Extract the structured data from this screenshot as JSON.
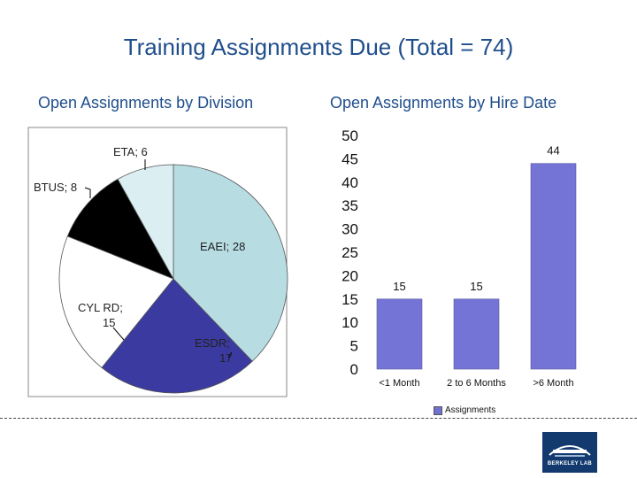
{
  "title": "Training Assignments Due (Total = 74)",
  "chart_data": [
    {
      "type": "pie",
      "title": "Open Assignments by Division",
      "slices": [
        {
          "label": "EAEI; 28",
          "name": "EAEI",
          "value": 28,
          "color": "#b7dde3"
        },
        {
          "label": "ESDR; 17",
          "name": "ESDR",
          "value": 17,
          "color": "#3a3aa0"
        },
        {
          "label": "CYL RD; 15",
          "name": "CYL RD",
          "value": 15,
          "color": "#ffffff"
        },
        {
          "label": "BTUS; 8",
          "name": "BTUS",
          "value": 8,
          "color": "#000000"
        },
        {
          "label": "ETA; 6",
          "name": "ETA",
          "value": 6,
          "color": "#dbeff3"
        }
      ]
    },
    {
      "type": "bar",
      "title": "Open Assignments by Hire Date",
      "categories": [
        "<1 Month",
        "2 to 6 Months",
        ">6 Month"
      ],
      "series": [
        {
          "name": "Assignments",
          "values": [
            15,
            15,
            44
          ],
          "color": "#7474d6"
        }
      ],
      "ylim": [
        0,
        50
      ],
      "yticks": [
        "0",
        "5",
        "10",
        "15",
        "20",
        "25",
        "30",
        "35",
        "40",
        "45",
        "50"
      ],
      "grid": false,
      "legend": "bottom"
    }
  ],
  "logo": {
    "text": "BERKELEY LAB"
  }
}
